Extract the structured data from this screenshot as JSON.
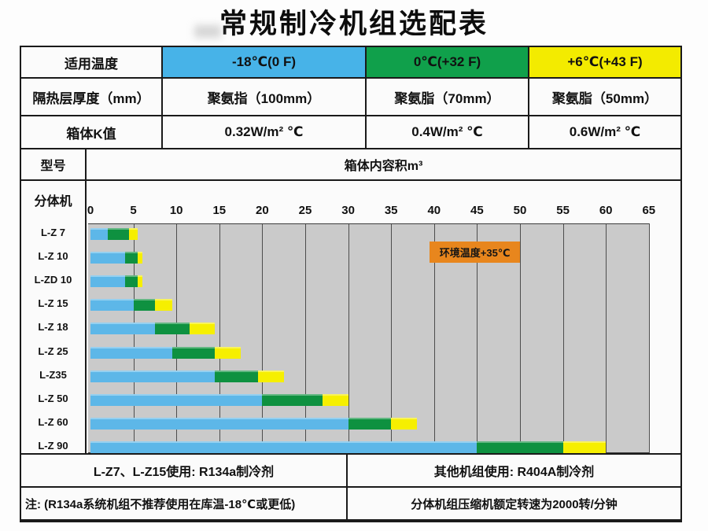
{
  "title": "常规制冷机组选配表",
  "colors": {
    "band_minus18": "#47b3e8",
    "band_zero": "#10a04b",
    "band_plus6": "#f3eb00",
    "bar_minus18": "#5db7e8",
    "bar_zero": "#0e9140",
    "bar_plus6": "#f6ef00",
    "plot_background": "#cacaca",
    "gridline": "#4d4d4d",
    "annotation_background": "#e8861d",
    "table_border": "#1a1a1a"
  },
  "spec_rows": [
    {
      "label": "适用温度",
      "cells": [
        {
          "text": "-18℃(0 F)"
        },
        {
          "text": "0℃(+32 F)"
        },
        {
          "text": "+6℃(+43 F)"
        }
      ]
    },
    {
      "label": "隔热层厚度（mm）",
      "cells": [
        {
          "text": "聚氨指（100mm）"
        },
        {
          "text": "聚氨脂（70mm）"
        },
        {
          "text": "聚氨脂（50mm）"
        }
      ]
    },
    {
      "label": "箱体K值",
      "cells": [
        {
          "text": "0.32W/m² ℃"
        },
        {
          "text": "0.4W/m² ℃"
        },
        {
          "text": "0.6W/m² ℃"
        }
      ]
    }
  ],
  "model_header": {
    "label": "型号",
    "value": "箱体内容积m³"
  },
  "chart_data": {
    "type": "bar",
    "orientation": "horizontal",
    "group_label": "分体机",
    "title": "箱体内容积m³",
    "x_axis": {
      "ticks": [
        0,
        5,
        10,
        15,
        20,
        25,
        30,
        35,
        40,
        45,
        50,
        55,
        60,
        65
      ],
      "range": [
        0,
        65
      ],
      "unit": "m³"
    },
    "annotation": {
      "text": "环境温度+35℃",
      "x_range": [
        39.5,
        50
      ]
    },
    "legend": [
      {
        "name": "-18℃(0 F)",
        "color_key": "bar_minus18"
      },
      {
        "name": "0℃(+32 F)",
        "color_key": "bar_zero"
      },
      {
        "name": "+6℃(+43 F)",
        "color_key": "bar_plus6"
      }
    ],
    "models": [
      {
        "name": "L-Z 7",
        "minus18_max": 2,
        "zero_max": 4.5,
        "plus6_max": 5.5
      },
      {
        "name": "L-Z 10",
        "minus18_max": 4,
        "zero_max": 5.5,
        "plus6_max": 6
      },
      {
        "name": "L-ZD 10",
        "minus18_max": 4,
        "zero_max": 5.5,
        "plus6_max": 6
      },
      {
        "name": "L-Z 15",
        "minus18_max": 5,
        "zero_max": 7.5,
        "plus6_max": 9.5
      },
      {
        "name": "L-Z 18",
        "minus18_max": 7.5,
        "zero_max": 11.5,
        "plus6_max": 14.5
      },
      {
        "name": "L-Z 25",
        "minus18_max": 9.5,
        "zero_max": 14.5,
        "plus6_max": 17.5
      },
      {
        "name": "L-Z35",
        "minus18_max": 14.5,
        "zero_max": 19.5,
        "plus6_max": 22.5
      },
      {
        "name": "L-Z 50",
        "minus18_max": 20,
        "zero_max": 27,
        "plus6_max": 30
      },
      {
        "name": "L-Z 60",
        "minus18_max": 30,
        "zero_max": 35,
        "plus6_max": 38
      },
      {
        "name": "L-Z 90",
        "minus18_max": 45,
        "zero_max": 55,
        "plus6_max": 60
      }
    ]
  },
  "footer": {
    "refrigerant_left": "L-Z7、L-Z15使用: R134a制冷剂",
    "refrigerant_right": "其他机组使用: R404A制冷剂",
    "note_left": "注: (R134a系统机组不推荐使用在库温-18℃或更低)",
    "note_right": "分体机组压缩机额定转速为2000转/分钟"
  }
}
